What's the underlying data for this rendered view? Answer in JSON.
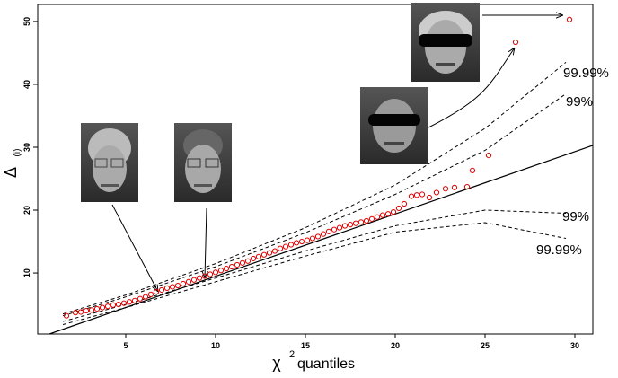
{
  "chart_data": {
    "type": "scatter",
    "ylabel_symbol": "Δ",
    "ylabel_subscript": "(i)",
    "xlabel_symbol": "χ",
    "xlabel_power": "2",
    "xlabel": "quantiles",
    "x": [
      1.7,
      2.2,
      2.5,
      2.8,
      3.1,
      3.4,
      3.7,
      4.0,
      4.3,
      4.6,
      4.9,
      5.2,
      5.5,
      5.8,
      6.1,
      6.4,
      6.7,
      7.0,
      7.3,
      7.6,
      7.9,
      8.2,
      8.5,
      8.8,
      9.1,
      9.4,
      9.7,
      10.0,
      10.3,
      10.6,
      10.9,
      11.2,
      11.5,
      11.8,
      12.1,
      12.4,
      12.7,
      13.0,
      13.3,
      13.6,
      13.9,
      14.2,
      14.5,
      14.8,
      15.1,
      15.4,
      15.7,
      16.0,
      16.3,
      16.6,
      16.9,
      17.2,
      17.5,
      17.8,
      18.1,
      18.4,
      18.7,
      19.0,
      19.3,
      19.6,
      19.9,
      20.2,
      20.5,
      20.9,
      21.2,
      21.5,
      21.9,
      22.3,
      22.8,
      23.3,
      24.0,
      24.3,
      25.2,
      26.7,
      29.7
    ],
    "values": [
      3.2,
      3.7,
      3.8,
      4.0,
      4.1,
      4.3,
      4.5,
      4.7,
      4.9,
      5.0,
      5.2,
      5.4,
      5.6,
      5.9,
      6.2,
      6.6,
      7.0,
      7.3,
      7.6,
      7.8,
      8.0,
      8.3,
      8.6,
      8.9,
      9.2,
      9.5,
      9.8,
      10.1,
      10.4,
      10.7,
      11.0,
      11.3,
      11.6,
      11.9,
      12.3,
      12.6,
      12.9,
      13.2,
      13.5,
      13.9,
      14.2,
      14.5,
      14.8,
      15.0,
      15.2,
      15.5,
      15.8,
      16.2,
      16.6,
      16.9,
      17.2,
      17.5,
      17.7,
      17.9,
      18.1,
      18.3,
      18.6,
      18.9,
      19.2,
      19.4,
      19.7,
      20.3,
      21.0,
      22.2,
      22.4,
      22.5,
      22.0,
      22.8,
      23.4,
      23.6,
      23.7,
      26.3,
      28.7,
      46.7,
      50.3
    ],
    "color": "#e00000",
    "reference_line": {
      "x": [
        0.75,
        31
      ],
      "y": [
        0.3,
        30.3
      ]
    },
    "envelopes": [
      {
        "label": "99.99%",
        "x": [
          1.5,
          5,
          10,
          15,
          20,
          25,
          29.5
        ],
        "y": [
          3.5,
          6.5,
          11.5,
          17.2,
          24,
          33,
          43.5
        ]
      },
      {
        "label": "99%",
        "x": [
          1.5,
          5,
          10,
          15,
          20,
          25,
          29.5
        ],
        "y": [
          3.2,
          6.2,
          11,
          16.4,
          22.5,
          29.5,
          38.5
        ]
      },
      {
        "label": "99%",
        "x": [
          1.5,
          5,
          10,
          15,
          20,
          25,
          29.5
        ],
        "y": [
          2.3,
          5.0,
          9.2,
          13.5,
          17.5,
          20,
          19.5
        ]
      },
      {
        "label": "99.99%",
        "x": [
          1.5,
          5,
          10,
          15,
          20,
          25,
          29.5
        ],
        "y": [
          1.8,
          4.5,
          8.6,
          12.7,
          16.5,
          18,
          15.5
        ]
      }
    ],
    "xlim": [
      0.1,
      31
    ],
    "ylim": [
      0.3,
      52.7
    ],
    "xticks": [
      5,
      10,
      15,
      20,
      25,
      30
    ],
    "yticks": [
      10,
      20,
      30,
      40,
      50
    ]
  }
}
